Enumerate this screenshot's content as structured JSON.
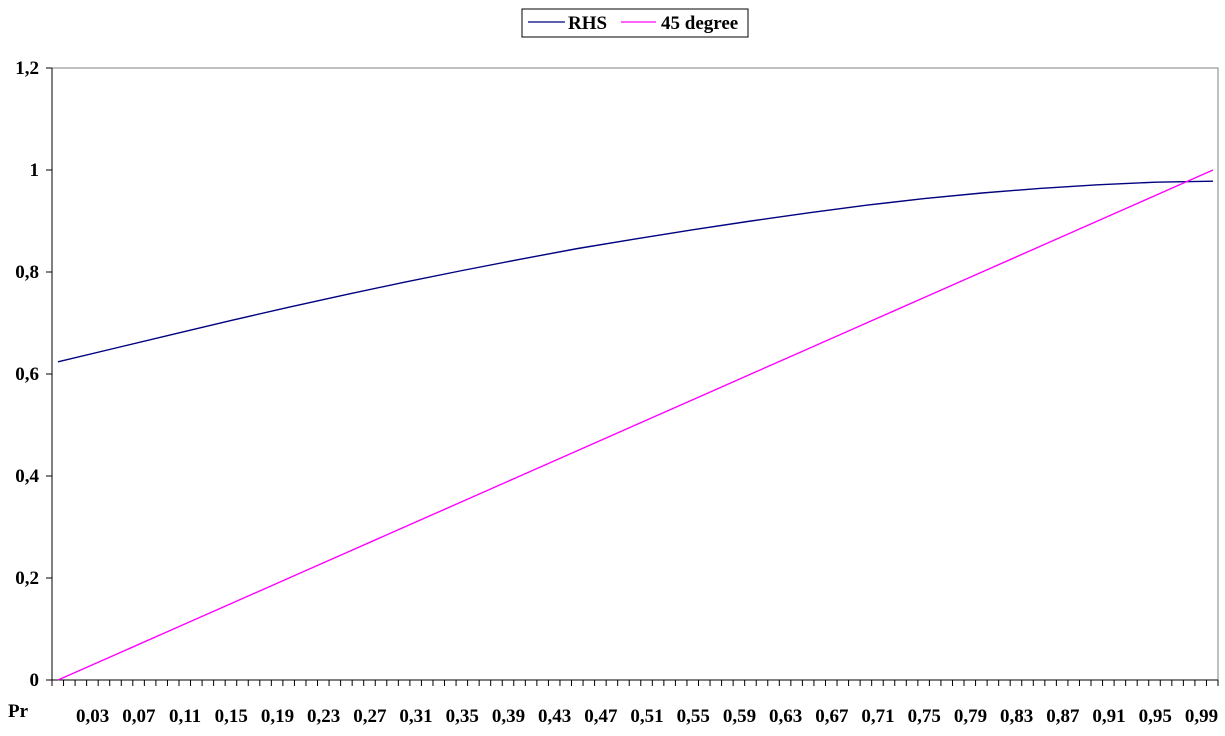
{
  "chart_data": {
    "type": "line",
    "title": "",
    "xlabel": "Pr",
    "ylabel": "",
    "x_tick_labels": [
      "0,03",
      "0,07",
      "0,11",
      "0,15",
      "0,19",
      "0,23",
      "0,27",
      "0,31",
      "0,35",
      "0,39",
      "0,43",
      "0,47",
      "0,51",
      "0,55",
      "0,59",
      "0,63",
      "0,67",
      "0,71",
      "0,75",
      "0,79",
      "0,83",
      "0,87",
      "0,91",
      "0,95",
      "0,99"
    ],
    "y_tick_labels": [
      "0",
      "0,2",
      "0,4",
      "0,6",
      "0,8",
      "1",
      "1,2"
    ],
    "ylim": [
      0,
      1.2
    ],
    "xlim": [
      0,
      1
    ],
    "grid": false,
    "legend_position": "top-center",
    "x": [
      0.0,
      0.05,
      0.1,
      0.15,
      0.2,
      0.25,
      0.3,
      0.35,
      0.4,
      0.45,
      0.5,
      0.55,
      0.6,
      0.65,
      0.7,
      0.75,
      0.8,
      0.85,
      0.9,
      0.95,
      1.0
    ],
    "series": [
      {
        "name": "RHS",
        "color": "#000080",
        "values": [
          0.624,
          0.651,
          0.678,
          0.705,
          0.731,
          0.756,
          0.78,
          0.803,
          0.825,
          0.846,
          0.865,
          0.883,
          0.9,
          0.916,
          0.931,
          0.944,
          0.955,
          0.964,
          0.971,
          0.976,
          0.978
        ]
      },
      {
        "name": "45 degree",
        "color": "#FF00FF",
        "values": [
          0.0,
          0.05,
          0.1,
          0.15,
          0.2,
          0.25,
          0.3,
          0.35,
          0.4,
          0.45,
          0.5,
          0.55,
          0.6,
          0.65,
          0.7,
          0.75,
          0.8,
          0.85,
          0.9,
          0.95,
          1.0
        ]
      }
    ]
  }
}
